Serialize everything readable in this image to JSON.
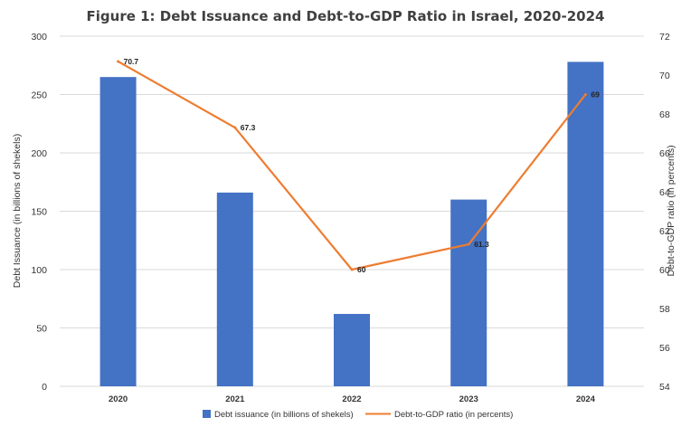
{
  "chart_data": {
    "type": "bar",
    "title": "Figure 1: Debt Issuance and Debt-to-GDP Ratio in Israel, 2020-2024",
    "categories": [
      "2020",
      "2021",
      "2022",
      "2023",
      "2024"
    ],
    "series": [
      {
        "name": "Debt issuance (in billions of shekels)",
        "type": "bar",
        "axis": "left",
        "color": "#4472C4",
        "values": [
          265,
          166,
          62,
          160,
          278
        ]
      },
      {
        "name": "Debt-to-GDP ratio (in percents)",
        "type": "line",
        "axis": "right",
        "color": "#ED7D31",
        "values": [
          70.7,
          67.3,
          60,
          61.3,
          69
        ],
        "data_labels": [
          "70.7",
          "67.3",
          "60",
          "61.3",
          "69"
        ]
      }
    ],
    "ylabel": "Debt Issuance (in billions of shekels)",
    "y2label": "Debt-to-GDP ratio (in percents)",
    "ylim": [
      0,
      300
    ],
    "y2lim": [
      54,
      72
    ],
    "yticks": [
      "0",
      "50",
      "100",
      "150",
      "200",
      "250",
      "300"
    ],
    "y2ticks": [
      "54",
      "56",
      "58",
      "60",
      "62",
      "64",
      "66",
      "68",
      "70",
      "72"
    ],
    "grid": true,
    "legend": "bottom"
  }
}
